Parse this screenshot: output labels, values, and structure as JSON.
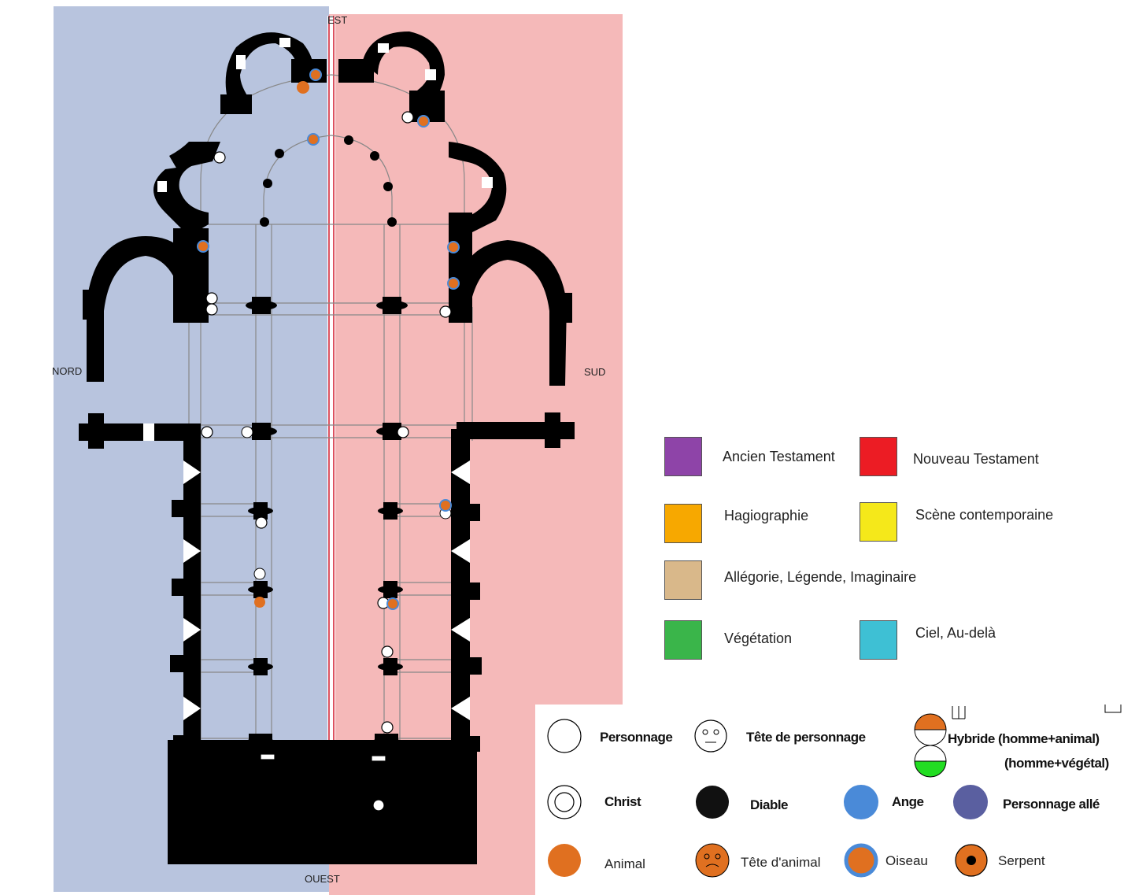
{
  "compass": {
    "north": "NORD",
    "south": "SUD",
    "east": "EST",
    "west": "OUEST"
  },
  "colors": {
    "north_half": "#b8c4de",
    "south_half": "#f5b9b9",
    "axis_line": "#d0192b",
    "wall": "#000000",
    "animal": "#e07020",
    "angel": "#4a8ad8",
    "winged": "#5a5fa0"
  },
  "color_legend": [
    {
      "label": "Ancien Testament",
      "color": "#8e44a8"
    },
    {
      "label": "Nouveau Testament",
      "color": "#ec1c24"
    },
    {
      "label": "Hagiographie",
      "color": "#f7a800"
    },
    {
      "label": "Scène contemporaine",
      "color": "#f5e81a"
    },
    {
      "label": "Allégorie, Légende, Imaginaire",
      "color": "#d9b88a"
    },
    {
      "label": "Végétation",
      "color": "#3ab54a"
    },
    {
      "label": "Ciel, Au-delà",
      "color": "#3ec0d4"
    }
  ],
  "symbol_legend": [
    {
      "label": "Personnage",
      "icon": "white-circle"
    },
    {
      "label": "Tête de personnage",
      "icon": "face"
    },
    {
      "label": "Hybride (homme+animal)",
      "icon": "half-orange"
    },
    {
      "label": "(homme+végétal)",
      "icon": "half-green"
    },
    {
      "label": "Christ",
      "icon": "double-circle"
    },
    {
      "label": "Diable",
      "icon": "black-circle"
    },
    {
      "label": "Ange",
      "icon": "blue-circle"
    },
    {
      "label": "Personnage allé",
      "icon": "purple-circle"
    },
    {
      "label": "Animal",
      "icon": "orange-circle"
    },
    {
      "label": "Tête d'animal",
      "icon": "orange-face"
    },
    {
      "label": "Oiseau",
      "icon": "blue-ring-orange"
    },
    {
      "label": "Serpent",
      "icon": "orange-ring-black"
    }
  ]
}
